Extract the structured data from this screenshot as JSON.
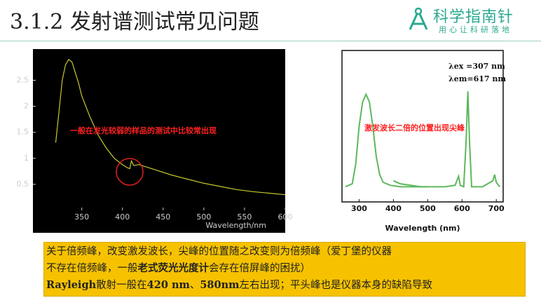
{
  "header": {
    "title": "3.1.2 发射谱测试常见问题",
    "logo": "科学指南针",
    "slogan": "用心让科研落地"
  },
  "chart_data": [
    {
      "type": "line",
      "xlabel": "Wavelength/nm",
      "annotations": [
        "一般在发光较弱的样品的测试中比较常出现"
      ],
      "xlim": [
        290,
        600
      ],
      "ylim": [
        0,
        3.1
      ],
      "xticks": [
        350,
        400,
        450,
        500,
        550,
        600
      ],
      "yticks": [
        0.5,
        1.0,
        1.5,
        2.0,
        2.5
      ],
      "series": [
        {
          "color": "#c8c832",
          "x": [
            318,
            322,
            326,
            330,
            334,
            338,
            342,
            346,
            350,
            360,
            370,
            380,
            390,
            400,
            406,
            409,
            411,
            414,
            420,
            440,
            460,
            480,
            500,
            520,
            540,
            560,
            580,
            600
          ],
          "values": [
            1.3,
            1.9,
            2.5,
            2.8,
            2.9,
            2.85,
            2.65,
            2.45,
            2.2,
            1.8,
            1.45,
            1.2,
            1.0,
            0.88,
            0.82,
            0.8,
            0.95,
            0.86,
            0.88,
            0.78,
            0.68,
            0.6,
            0.52,
            0.46,
            0.4,
            0.36,
            0.33,
            0.3
          ]
        }
      ]
    },
    {
      "type": "line",
      "xlabel": "Wavelength (nm)",
      "annotations": [
        "λex =307 nm",
        "λem=617 nm",
        "激发波长二倍的位置出现尖峰"
      ],
      "xlim": [
        250,
        720
      ],
      "ylim": [
        0,
        1
      ],
      "xticks": [
        300,
        400,
        500,
        600,
        700
      ],
      "series": [
        {
          "color": "#5cb85c",
          "x": [
            260,
            280,
            290,
            300,
            310,
            320,
            330,
            340,
            350,
            360,
            370,
            390,
            420,
            450,
            480,
            500
          ],
          "values": [
            0.1,
            0.12,
            0.25,
            0.5,
            0.66,
            0.71,
            0.66,
            0.5,
            0.3,
            0.18,
            0.13,
            0.11,
            0.1,
            0.1,
            0.1,
            0.1
          ]
        },
        {
          "color": "#5cb85c",
          "x": [
            400,
            420,
            450,
            480,
            500,
            550,
            580,
            590,
            595,
            605,
            612,
            617,
            622,
            628,
            660,
            690,
            695,
            700,
            710
          ],
          "values": [
            0.14,
            0.12,
            0.11,
            0.1,
            0.1,
            0.1,
            0.11,
            0.17,
            0.11,
            0.1,
            0.4,
            0.73,
            0.4,
            0.1,
            0.1,
            0.14,
            0.18,
            0.13,
            0.1
          ]
        }
      ]
    }
  ],
  "note": {
    "lines": [
      [
        "关于倍频峰，改变激发波长，尖峰的位置随之改变则为倍频峰（爱丁堡的仪器"
      ],
      [
        "不存在倍频峰，一般",
        "老式荧光光度计",
        "会存在倍屏峰的困扰）"
      ],
      [
        "Rayleigh",
        "散射一般在",
        "420 nm",
        "、",
        "580nm",
        "左右出现；平头峰也是仪器本身的缺陷导致"
      ]
    ]
  }
}
